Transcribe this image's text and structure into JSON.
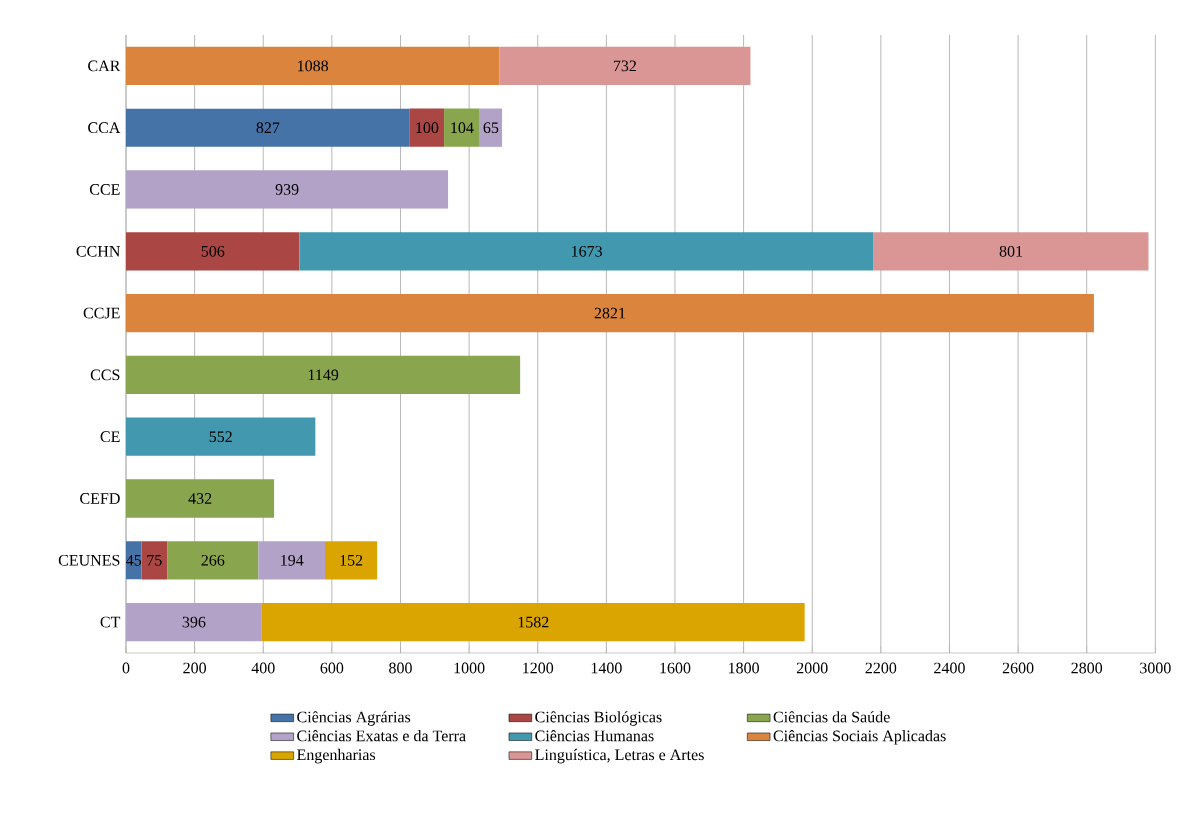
{
  "chart_data": {
    "type": "bar",
    "orientation": "horizontal",
    "stacked": true,
    "data_labels": true,
    "grid": "x",
    "legend": "bottom",
    "categories": [
      "CAR",
      "CCA",
      "CCE",
      "CCHN",
      "CCJE",
      "CCS",
      "CE",
      "CEFD",
      "CEUNES",
      "CT"
    ],
    "xlim": [
      0,
      3000
    ],
    "xticks": [
      0,
      200,
      400,
      600,
      800,
      1000,
      1200,
      1400,
      1600,
      1800,
      2000,
      2200,
      2400,
      2600,
      2800,
      3000
    ],
    "series": [
      {
        "name": "Ciências Agrárias",
        "color": "#4572a7",
        "values": [
          null,
          827,
          null,
          null,
          null,
          null,
          null,
          null,
          45,
          null
        ]
      },
      {
        "name": "Ciências Biológicas",
        "color": "#aa4643",
        "values": [
          null,
          100,
          null,
          506,
          null,
          null,
          null,
          null,
          75,
          null
        ]
      },
      {
        "name": "Ciências da Saúde",
        "color": "#89a54e",
        "values": [
          null,
          104,
          null,
          null,
          null,
          1149,
          null,
          432,
          266,
          null
        ]
      },
      {
        "name": "Ciências Exatas e da Terra",
        "color": "#b3a2c7",
        "values": [
          null,
          65,
          939,
          null,
          null,
          null,
          null,
          null,
          194,
          396
        ]
      },
      {
        "name": "Ciências Humanas",
        "color": "#4198af",
        "values": [
          null,
          null,
          null,
          1673,
          null,
          null,
          552,
          null,
          null,
          null
        ]
      },
      {
        "name": "Ciências Sociais Aplicadas",
        "color": "#db843d",
        "values": [
          1088,
          null,
          null,
          null,
          2821,
          null,
          null,
          null,
          null,
          null
        ]
      },
      {
        "name": "Engenharias",
        "color": "#daa500",
        "values": [
          null,
          null,
          null,
          null,
          null,
          null,
          null,
          null,
          152,
          1582
        ]
      },
      {
        "name": "Linguística, Letras e Artes",
        "color": "#d99694",
        "values": [
          732,
          null,
          null,
          801,
          null,
          null,
          null,
          null,
          null,
          null
        ]
      }
    ]
  }
}
